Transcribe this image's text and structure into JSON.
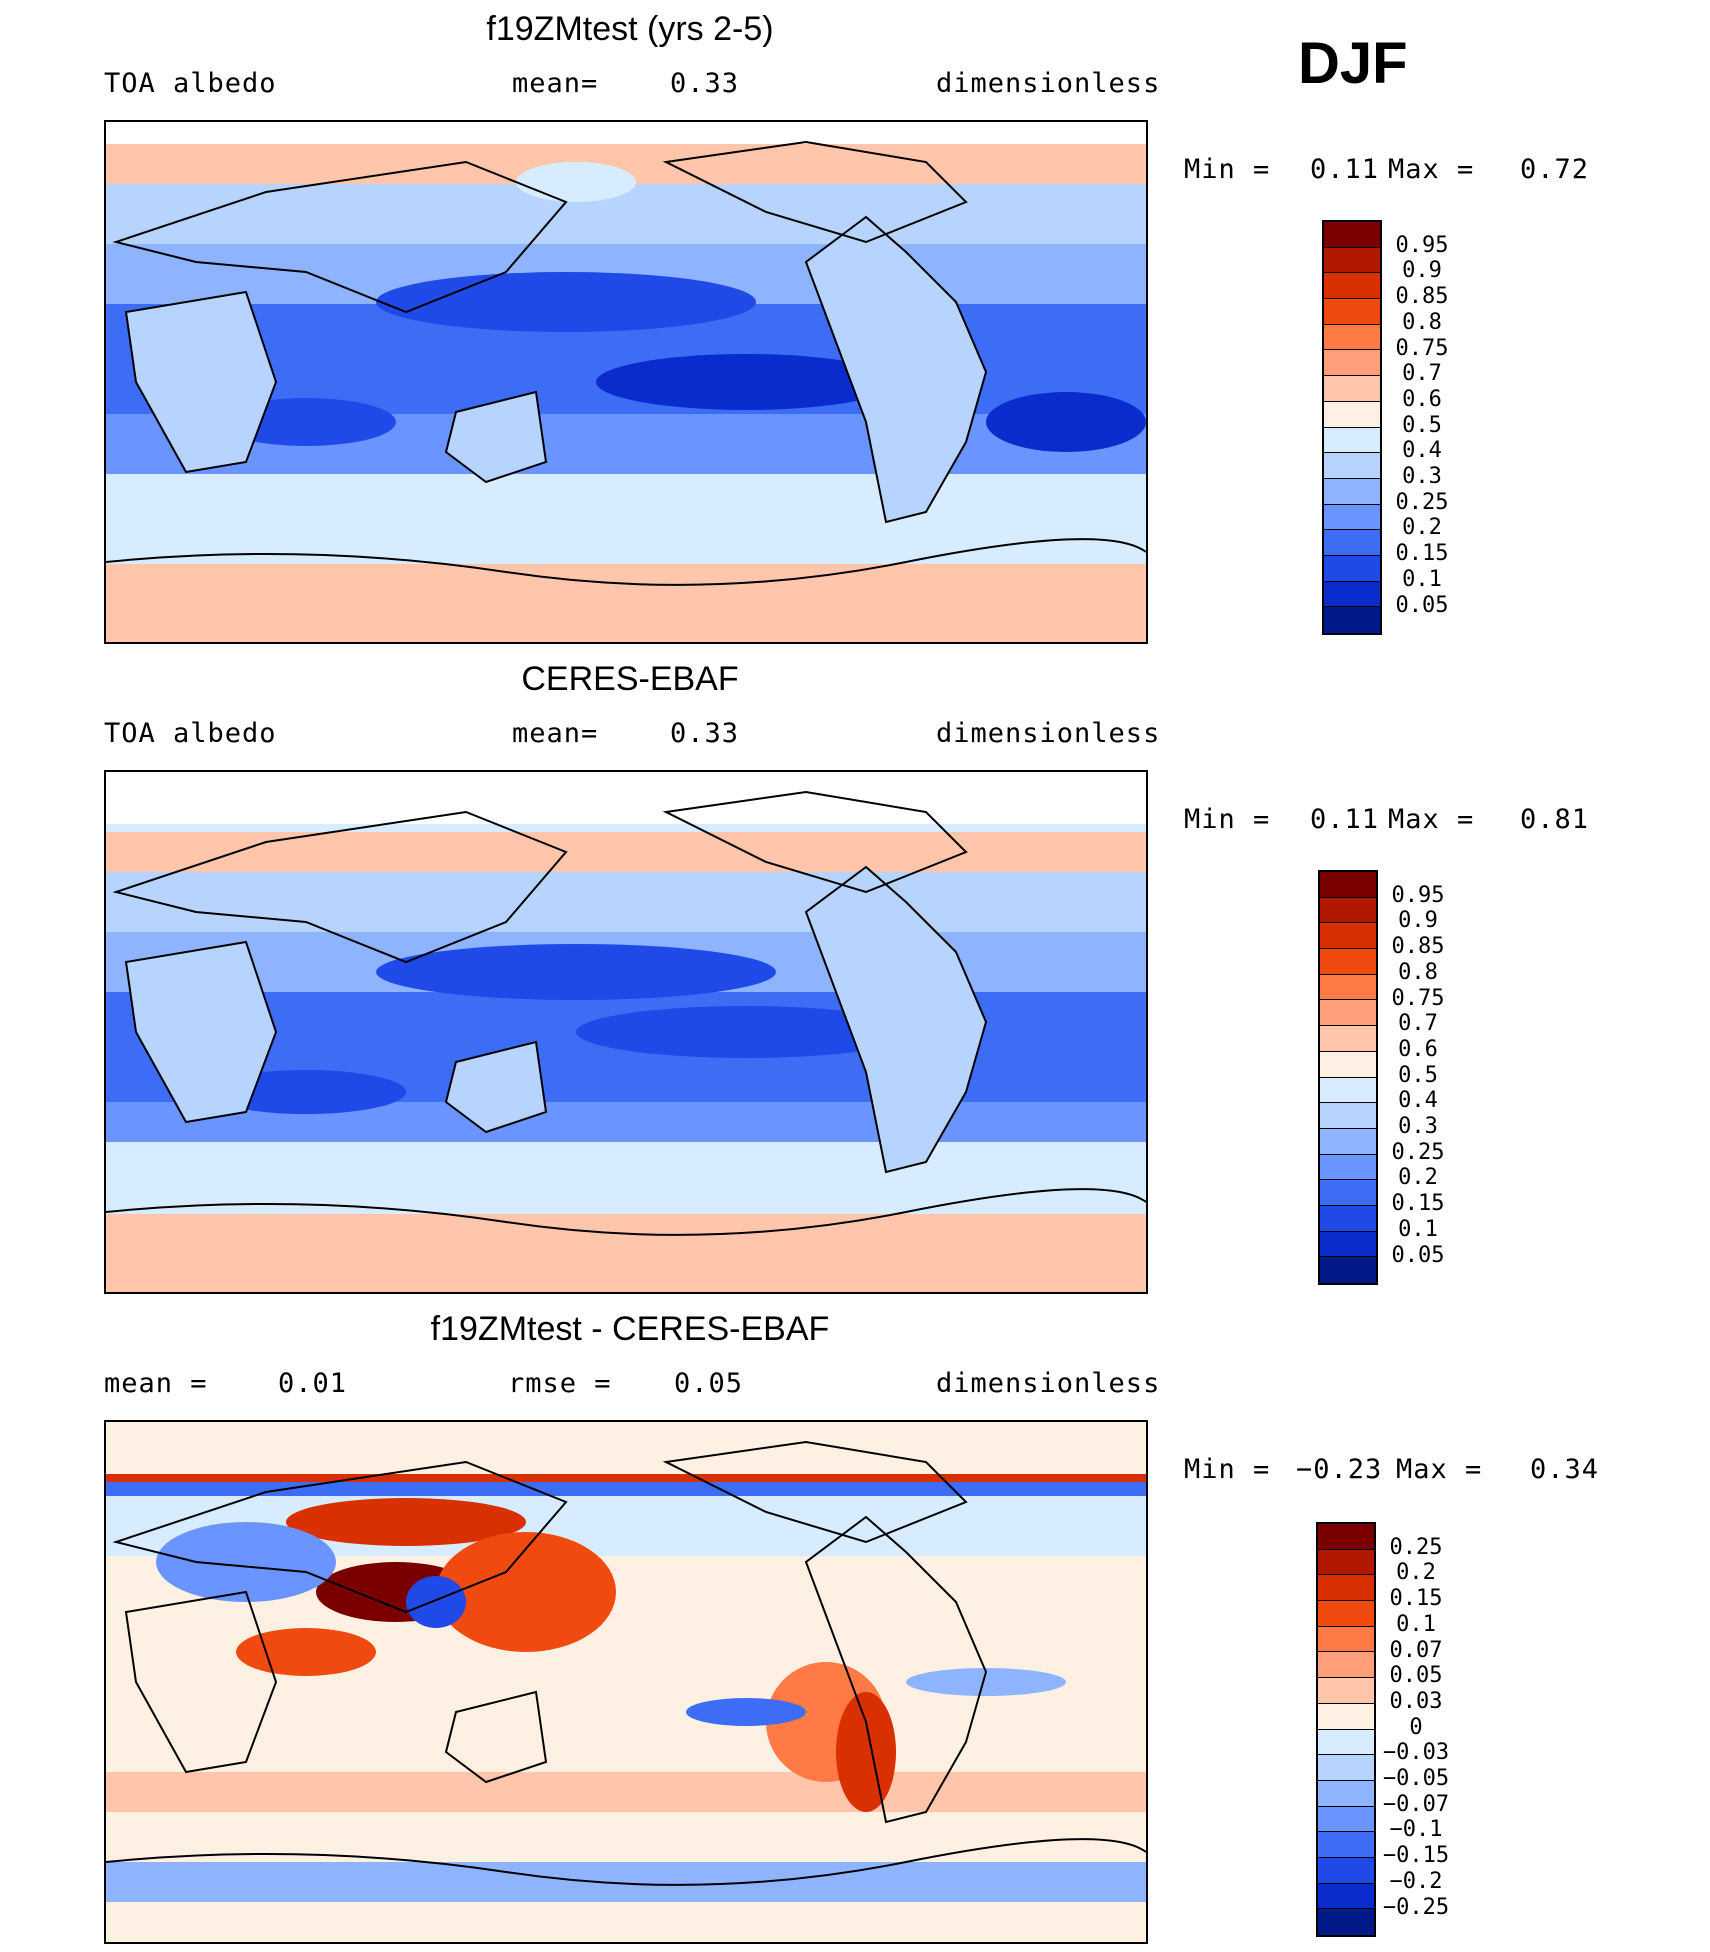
{
  "season": "DJF",
  "panels": [
    {
      "title": "f19ZMtest (yrs 2-5)",
      "left": "TOA albedo",
      "center_label": "mean=",
      "center_value": "0.33",
      "right": "dimensionless",
      "min_label": "Min =",
      "min_value": "0.11",
      "max_label": "Max =",
      "max_value": "0.72",
      "colorbar": {
        "labels": [
          "0.95",
          "0.9",
          "0.85",
          "0.8",
          "0.75",
          "0.7",
          "0.6",
          "0.5",
          "0.4",
          "0.3",
          "0.25",
          "0.2",
          "0.15",
          "0.1",
          "0.05"
        ],
        "colors": [
          "#7a0000",
          "#b01800",
          "#d83000",
          "#f04a10",
          "#ff7a45",
          "#ff9e78",
          "#ffc6ab",
          "#fff0e4",
          "#d8ecff",
          "#b7d4ff",
          "#8fb4ff",
          "#6a94ff",
          "#3d6cf5",
          "#1f4ae8",
          "#0a2ccc",
          "#001a8a"
        ]
      }
    },
    {
      "title": "CERES-EBAF",
      "left": "TOA albedo",
      "center_label": "mean=",
      "center_value": "0.33",
      "right": "dimensionless",
      "min_label": "Min =",
      "min_value": "0.11",
      "max_label": "Max =",
      "max_value": "0.81",
      "colorbar": {
        "labels": [
          "0.95",
          "0.9",
          "0.85",
          "0.8",
          "0.75",
          "0.7",
          "0.6",
          "0.5",
          "0.4",
          "0.3",
          "0.25",
          "0.2",
          "0.15",
          "0.1",
          "0.05"
        ],
        "colors": [
          "#7a0000",
          "#b01800",
          "#d83000",
          "#f04a10",
          "#ff7a45",
          "#ff9e78",
          "#ffc6ab",
          "#fff0e4",
          "#d8ecff",
          "#b7d4ff",
          "#8fb4ff",
          "#6a94ff",
          "#3d6cf5",
          "#1f4ae8",
          "#0a2ccc",
          "#001a8a"
        ]
      }
    },
    {
      "title": "f19ZMtest - CERES-EBAF",
      "left": "mean =",
      "left_value": "0.01",
      "center_label": "rmse =",
      "center_value": "0.05",
      "right": "dimensionless",
      "min_label": "Min =",
      "min_value": "−0.23",
      "max_label": "Max =",
      "max_value": "0.34",
      "colorbar": {
        "labels": [
          "0.25",
          "0.2",
          "0.15",
          "0.1",
          "0.07",
          "0.05",
          "0.03",
          "0",
          "−0.03",
          "−0.05",
          "−0.07",
          "−0.1",
          "−0.15",
          "−0.2",
          "−0.25"
        ],
        "colors": [
          "#7a0000",
          "#b01800",
          "#d83000",
          "#f04a10",
          "#ff7a45",
          "#ff9e78",
          "#ffc6ab",
          "#fff0e4",
          "#d8ecff",
          "#b7d4ff",
          "#8fb4ff",
          "#6a94ff",
          "#3d6cf5",
          "#1f4ae8",
          "#0a2ccc",
          "#001a8a"
        ]
      }
    }
  ]
}
